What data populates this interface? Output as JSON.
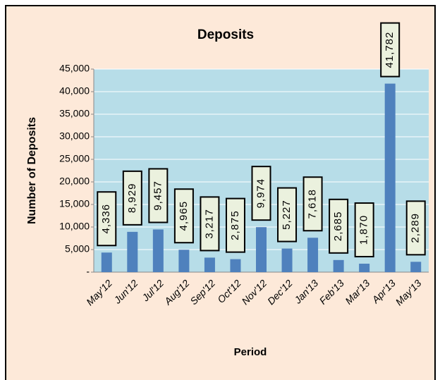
{
  "chart_data": {
    "type": "bar",
    "title": "Deposits",
    "x_label": "Period",
    "y_label": "Number of Deposits",
    "categories": [
      "May'12",
      "Jun'12",
      "Jul'12",
      "Aug'12",
      "Sep'12",
      "Oct'12",
      "Nov'12",
      "Dec'12",
      "Jan'13",
      "Feb'13",
      "Mar'13",
      "Apr'13",
      "May'13"
    ],
    "values": [
      4336,
      8929,
      9457,
      4965,
      3217,
      2875,
      9974,
      5227,
      7618,
      2685,
      1870,
      41782,
      2289
    ],
    "value_labels": [
      "4,336",
      "8,929",
      "9,457",
      "4,965",
      "3,217",
      "2,875",
      "9,974",
      "5,227",
      "7,618",
      "2,685",
      "1,870",
      "41,782",
      "2,289"
    ],
    "color": "#4f81bd",
    "ylim": [
      0,
      45000
    ],
    "yticks": [
      {
        "value": 0,
        "label": "-"
      },
      {
        "value": 5000,
        "label": "5,000"
      },
      {
        "value": 10000,
        "label": "10,000"
      },
      {
        "value": 15000,
        "label": "15,000"
      },
      {
        "value": 20000,
        "label": "20,000"
      },
      {
        "value": 25000,
        "label": "25,000"
      },
      {
        "value": 30000,
        "label": "30,000"
      },
      {
        "value": 35000,
        "label": "35,000"
      },
      {
        "value": 40000,
        "label": "40,000"
      },
      {
        "value": 45000,
        "label": "45,000"
      }
    ],
    "grid": true
  }
}
